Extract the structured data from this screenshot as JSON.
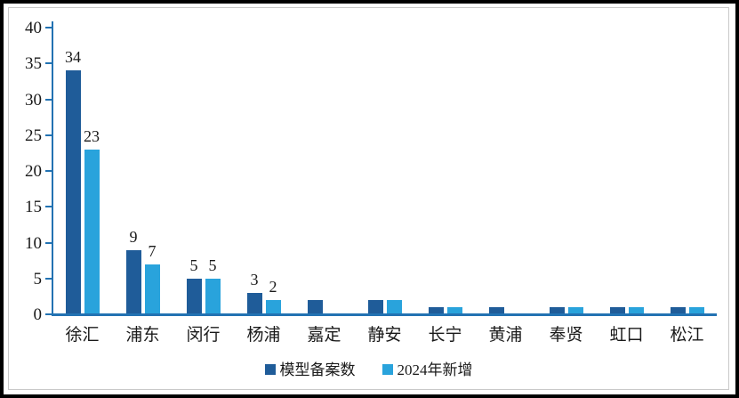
{
  "chart_data": {
    "type": "bar",
    "title": "",
    "xlabel": "",
    "ylabel": "",
    "categories": [
      "徐汇",
      "浦东",
      "闵行",
      "杨浦",
      "嘉定",
      "静安",
      "长宁",
      "黄浦",
      "奉贤",
      "虹口",
      "松江"
    ],
    "series": [
      {
        "name": "模型备案数",
        "color": "#1F5C99",
        "values": [
          34,
          9,
          5,
          3,
          2,
          2,
          1,
          1,
          1,
          1,
          1
        ],
        "data_labels": [
          "34",
          "9",
          "5",
          "3",
          "",
          "",
          "",
          "",
          "",
          "",
          ""
        ]
      },
      {
        "name": "2024年新增",
        "color": "#29A3DC",
        "values": [
          23,
          7,
          5,
          2,
          0,
          2,
          1,
          0,
          1,
          1,
          1
        ],
        "data_labels": [
          "23",
          "7",
          "5",
          "2",
          "",
          "",
          "",
          "",
          "",
          "",
          ""
        ]
      }
    ],
    "ylim": [
      0,
      40
    ],
    "yticks": [
      0,
      5,
      10,
      15,
      20,
      25,
      30,
      35,
      40
    ],
    "grid": false,
    "legend_position": "bottom",
    "axis_color": "#2272B2",
    "text_color": "#1a1a1a"
  }
}
